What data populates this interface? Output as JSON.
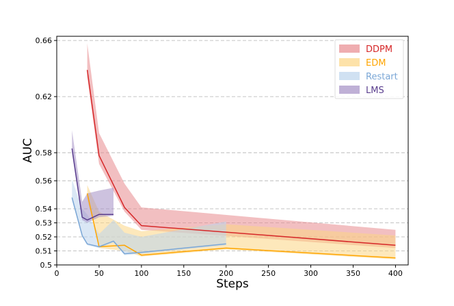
{
  "chart_data": {
    "type": "line",
    "title": "",
    "xlabel": "Steps",
    "ylabel": "AUC",
    "xlim": [
      0,
      415
    ],
    "ylim": [
      0.5,
      0.663
    ],
    "x_ticks": [
      0,
      50,
      100,
      150,
      200,
      250,
      300,
      350,
      400
    ],
    "y_ticks": [
      0.5,
      0.51,
      0.52,
      0.53,
      0.54,
      0.56,
      0.58,
      0.62,
      0.66
    ],
    "y_tick_labels": [
      "0.5",
      "0.51",
      "0.52",
      "0.53",
      "0.54",
      "0.56",
      "0.58",
      "0.62",
      "0.66"
    ],
    "grid": "horizontal-dashed",
    "legend": "top-right",
    "series": [
      {
        "name": "DDPM",
        "color": "#d62728",
        "fill": "#e88a8e",
        "x": [
          36,
          50,
          80,
          100,
          400
        ],
        "y": [
          0.639,
          0.578,
          0.541,
          0.528,
          0.514
        ],
        "upper": [
          0.658,
          0.594,
          0.558,
          0.541,
          0.525
        ],
        "lower": [
          0.634,
          0.572,
          0.538,
          0.525,
          0.512
        ]
      },
      {
        "name": "EDM",
        "color": "#ffa500",
        "fill": "#fcd584",
        "x": [
          36,
          50,
          80,
          100,
          200,
          400
        ],
        "y": [
          0.551,
          0.513,
          0.514,
          0.507,
          0.512,
          0.505
        ],
        "upper": [
          0.557,
          0.538,
          0.528,
          0.524,
          0.529,
          0.521
        ],
        "lower": [
          0.547,
          0.512,
          0.51,
          0.506,
          0.511,
          0.504
        ]
      },
      {
        "name": "Restart",
        "color": "#7ba7d6",
        "fill": "#bcd4ec",
        "x": [
          18,
          30,
          36,
          50,
          67,
          80,
          100,
          200
        ],
        "y": [
          0.548,
          0.521,
          0.515,
          0.513,
          0.517,
          0.508,
          0.509,
          0.515
        ],
        "upper": [
          0.561,
          0.54,
          0.536,
          0.522,
          0.532,
          0.523,
          0.52,
          0.531
        ],
        "lower": [
          0.546,
          0.52,
          0.514,
          0.512,
          0.516,
          0.507,
          0.508,
          0.514
        ]
      },
      {
        "name": "LMS",
        "color": "#5a3e8e",
        "fill": "#a48fc4",
        "x": [
          18,
          30,
          36,
          50,
          67
        ],
        "y": [
          0.583,
          0.534,
          0.532,
          0.536,
          0.536
        ],
        "upper": [
          0.596,
          0.545,
          0.551,
          0.553,
          0.555
        ],
        "lower": [
          0.58,
          0.532,
          0.53,
          0.534,
          0.535
        ]
      }
    ]
  }
}
